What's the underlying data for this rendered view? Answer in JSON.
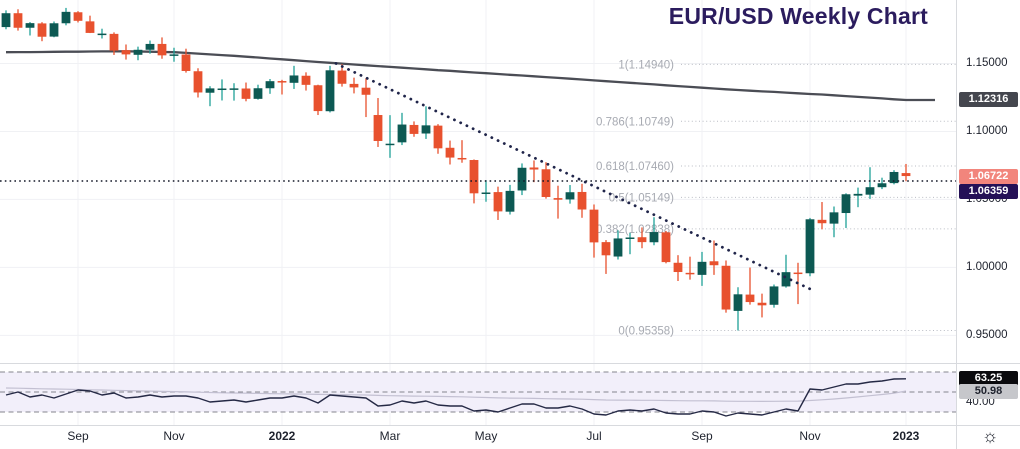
{
  "title": "EUR/USD Weekly Chart",
  "settings_icon": "☼",
  "theme": {
    "background": "#ffffff",
    "title_color": "#2b1c5e",
    "axis_text": "#1e222d",
    "grid_color": "#f0f1f4",
    "separator_color": "#d8dade",
    "up_body": "#0d5953",
    "up_wick": "#1fa098",
    "down_body": "#e8512e",
    "ma_color": "#4b4d55",
    "fib_color": "#a7aab2",
    "fib_line_color": "#b9bcc4",
    "trendline_color": "#20254a",
    "price_line_color": "#141829",
    "rsi_line": "#252945",
    "rsi_ma_line": "#c3c0d2",
    "rsi_band_fill": "#f2effa",
    "rsi_dash": "#84858d",
    "badge_ma_bg": "#44464e",
    "badge_ma_fg": "#ffffff",
    "badge_price_bg": "#f2857c",
    "badge_price_fg": "#ffffff",
    "badge_line_bg": "#241056",
    "badge_line_fg": "#ffffff",
    "badge_rsi_bg": "#0a0a0d",
    "badge_rsi_fg": "#ffffff",
    "badge_rsima_bg": "#c6c7cb",
    "badge_rsima_fg": "#1e222d"
  },
  "right_axis": {
    "price_labels": [
      {
        "text": "1.15000",
        "price": 1.15
      },
      {
        "text": "1.10000",
        "price": 1.1
      },
      {
        "text": "1.05000",
        "price": 1.05
      },
      {
        "text": "1.00000",
        "price": 1.0
      },
      {
        "text": "0.95000",
        "price": 0.95
      }
    ],
    "badges": [
      {
        "text": "1.12316",
        "price": 1.12316,
        "kind": "ma"
      },
      {
        "text": "1.06722",
        "price": 1.06722,
        "kind": "price"
      },
      {
        "text": "1.06359",
        "price": 1.06359,
        "kind": "line",
        "stack_below": "price"
      }
    ],
    "rsi_badges": [
      {
        "text": "63.25",
        "value": 63.25,
        "kind": "rsi"
      },
      {
        "text": "50.98",
        "value": 50.98,
        "kind": "rsima"
      }
    ],
    "rsi_axis_remnant": "40.00"
  },
  "time_axis": {
    "labels": [
      {
        "text": "Sep",
        "index": 6,
        "bold": false
      },
      {
        "text": "Nov",
        "index": 14,
        "bold": false
      },
      {
        "text": "2022",
        "index": 23,
        "bold": true
      },
      {
        "text": "Mar",
        "index": 32,
        "bold": false
      },
      {
        "text": "May",
        "index": 40,
        "bold": false
      },
      {
        "text": "Jul",
        "index": 49,
        "bold": false
      },
      {
        "text": "Sep",
        "index": 58,
        "bold": false
      },
      {
        "text": "Nov",
        "index": 67,
        "bold": false
      },
      {
        "text": "2023",
        "index": 75,
        "bold": true
      }
    ]
  },
  "chart_data": {
    "type": "candlestick",
    "title": "EUR/USD Weekly Chart",
    "pair": "EUR/USD",
    "timeframe": "Weekly",
    "y_axis_visible_range": [
      0.932,
      1.197
    ],
    "last_price": 1.06722,
    "ma_last_value": 1.12316,
    "horizontal_line_price": 1.06359,
    "candles": [
      [
        1.1768,
        1.1891,
        1.1752,
        1.187
      ],
      [
        1.187,
        1.1899,
        1.1742,
        1.1763
      ],
      [
        1.1763,
        1.1805,
        1.1706,
        1.1797
      ],
      [
        1.1795,
        1.1804,
        1.1664,
        1.1697
      ],
      [
        1.1698,
        1.1809,
        1.1693,
        1.1796
      ],
      [
        1.1796,
        1.1909,
        1.1781,
        1.188
      ],
      [
        1.1877,
        1.1885,
        1.1802,
        1.1814
      ],
      [
        1.181,
        1.1852,
        1.1724,
        1.1725
      ],
      [
        1.172,
        1.1756,
        1.1684,
        1.172
      ],
      [
        1.1718,
        1.1729,
        1.1563,
        1.1595
      ],
      [
        1.1598,
        1.164,
        1.1529,
        1.1567
      ],
      [
        1.1564,
        1.1624,
        1.1524,
        1.1601
      ],
      [
        1.1601,
        1.1669,
        1.1572,
        1.1644
      ],
      [
        1.1644,
        1.1692,
        1.1535,
        1.156
      ],
      [
        1.1558,
        1.1616,
        1.1513,
        1.1567
      ],
      [
        1.1566,
        1.1609,
        1.1433,
        1.1445
      ],
      [
        1.1443,
        1.1465,
        1.125,
        1.1287
      ],
      [
        1.1285,
        1.1333,
        1.1186,
        1.1317
      ],
      [
        1.131,
        1.1383,
        1.1228,
        1.1316
      ],
      [
        1.1312,
        1.1355,
        1.1227,
        1.1317
      ],
      [
        1.1316,
        1.136,
        1.1222,
        1.124
      ],
      [
        1.124,
        1.1344,
        1.1234,
        1.1318
      ],
      [
        1.1318,
        1.1386,
        1.1277,
        1.137
      ],
      [
        1.1371,
        1.138,
        1.1272,
        1.136
      ],
      [
        1.1358,
        1.1483,
        1.1313,
        1.1412
      ],
      [
        1.141,
        1.1435,
        1.1301,
        1.1343
      ],
      [
        1.134,
        1.1344,
        1.1121,
        1.115
      ],
      [
        1.1149,
        1.1483,
        1.114,
        1.145
      ],
      [
        1.1448,
        1.1495,
        1.133,
        1.1351
      ],
      [
        1.135,
        1.1396,
        1.128,
        1.1324
      ],
      [
        1.1322,
        1.1391,
        1.1106,
        1.127
      ],
      [
        1.1121,
        1.1246,
        1.0886,
        1.093
      ],
      [
        1.0905,
        1.112,
        1.0806,
        1.091
      ],
      [
        1.092,
        1.1137,
        1.09,
        1.1051
      ],
      [
        1.1048,
        1.1074,
        1.0961,
        1.0982
      ],
      [
        1.0985,
        1.1185,
        1.0945,
        1.1045
      ],
      [
        1.1043,
        1.1054,
        1.0836,
        1.0876
      ],
      [
        1.088,
        1.0933,
        1.0757,
        1.0808
      ],
      [
        1.0805,
        1.0936,
        1.077,
        1.0795
      ],
      [
        1.079,
        1.0794,
        1.0471,
        1.0545
      ],
      [
        1.054,
        1.0642,
        1.0483,
        1.0551
      ],
      [
        1.0554,
        1.0594,
        1.0349,
        1.0412
      ],
      [
        1.041,
        1.0607,
        1.0389,
        1.0563
      ],
      [
        1.0566,
        1.0765,
        1.0532,
        1.0733
      ],
      [
        1.0735,
        1.0787,
        1.0627,
        1.072
      ],
      [
        1.0722,
        1.0774,
        1.0506,
        1.0518
      ],
      [
        1.051,
        1.0601,
        1.0359,
        1.0498
      ],
      [
        1.05,
        1.0606,
        1.0469,
        1.0553
      ],
      [
        1.0555,
        1.0615,
        1.0365,
        1.0426
      ],
      [
        1.0425,
        1.0463,
        1.0072,
        1.0184
      ],
      [
        1.0186,
        1.0201,
        0.9952,
        1.0089
      ],
      [
        1.008,
        1.0273,
        1.0058,
        1.0213
      ],
      [
        1.0215,
        1.0254,
        1.0097,
        1.022
      ],
      [
        1.0222,
        1.0294,
        1.0141,
        1.0186
      ],
      [
        1.0185,
        1.0369,
        1.0163,
        1.026
      ],
      [
        1.0258,
        1.0268,
        1.003,
        1.0039
      ],
      [
        1.0034,
        1.009,
        0.99,
        0.9966
      ],
      [
        0.996,
        1.0079,
        0.991,
        0.9952
      ],
      [
        0.9945,
        1.0114,
        0.9864,
        1.0041
      ],
      [
        1.0045,
        1.0198,
        0.9945,
        1.0016
      ],
      [
        1.0012,
        1.0051,
        0.9667,
        0.969
      ],
      [
        0.968,
        0.9854,
        0.9536,
        0.9802
      ],
      [
        0.98,
        0.9999,
        0.9726,
        0.9745
      ],
      [
        0.974,
        0.9807,
        0.9632,
        0.9721
      ],
      [
        0.9725,
        0.9874,
        0.9704,
        0.986
      ],
      [
        0.986,
        1.0093,
        0.9851,
        0.9965
      ],
      [
        0.9962,
        1.0034,
        0.973,
        0.9959
      ],
      [
        0.9957,
        1.0364,
        0.9935,
        1.0354
      ],
      [
        1.035,
        1.0481,
        1.028,
        1.0325
      ],
      [
        1.0322,
        1.0448,
        1.0222,
        1.0405
      ],
      [
        1.04,
        1.0545,
        1.029,
        1.0538
      ],
      [
        1.0528,
        1.0587,
        1.0443,
        1.0541
      ],
      [
        1.0535,
        1.0737,
        1.0504,
        1.059
      ],
      [
        1.059,
        1.066,
        1.0576,
        1.0619
      ],
      [
        1.062,
        1.0715,
        1.0611,
        1.0702
      ],
      [
        1.0694,
        1.0761,
        1.0634,
        1.0672
      ]
    ],
    "ma_values": [
      1.1583,
      1.1584,
      1.1584,
      1.1585,
      1.1586,
      1.1587,
      1.1587,
      1.1588,
      1.1589,
      1.1589,
      1.159,
      1.1588,
      1.1587,
      1.1585,
      1.1583,
      1.1578,
      1.1573,
      1.1567,
      1.1562,
      1.1557,
      1.155,
      1.1544,
      1.1537,
      1.1531,
      1.1524,
      1.1518,
      1.1511,
      1.1505,
      1.1499,
      1.1493,
      1.1487,
      1.1481,
      1.1475,
      1.1469,
      1.1463,
      1.1457,
      1.1451,
      1.1446,
      1.144,
      1.1434,
      1.1429,
      1.1423,
      1.1417,
      1.1412,
      1.1406,
      1.14,
      1.1394,
      1.1388,
      1.1382,
      1.1376,
      1.137,
      1.1364,
      1.1358,
      1.1352,
      1.1346,
      1.134,
      1.1334,
      1.1328,
      1.1322,
      1.1316,
      1.131,
      1.1305,
      1.13,
      1.1295,
      1.1291,
      1.1286,
      1.1281,
      1.1276,
      1.1272,
      1.1266,
      1.126,
      1.1254,
      1.1249,
      1.1243,
      1.1237,
      1.12316
    ],
    "fib_levels": [
      {
        "ratio": "1",
        "price": 1.1494,
        "label": "1(1.14940)"
      },
      {
        "ratio": "0.786",
        "price": 1.10749,
        "label": "0.786(1.10749)"
      },
      {
        "ratio": "0.618",
        "price": 1.0746,
        "label": "0.618(1.07460)"
      },
      {
        "ratio": "0.5",
        "price": 1.05149,
        "label": "0.5(1.05149)"
      },
      {
        "ratio": "0.382",
        "price": 1.02838,
        "label": "0.382(1.02838)"
      },
      {
        "ratio": "0",
        "price": 0.95358,
        "label": "0(0.95358)"
      }
    ],
    "trendline": {
      "from_index": 27.5,
      "from_price": 1.15,
      "to_index": 67.2,
      "to_price": 0.9833
    },
    "rsi": {
      "bands": [
        70,
        50,
        30
      ],
      "last": 63.25,
      "ma_last": 50.98,
      "values": [
        47,
        50,
        45,
        47,
        44,
        48,
        52,
        51,
        47,
        49,
        44,
        45,
        47,
        45,
        46,
        46,
        44,
        40,
        41,
        42,
        40,
        42,
        44,
        44,
        46,
        44,
        39,
        47,
        46,
        45,
        44,
        36,
        37,
        41,
        39,
        41,
        37,
        36,
        36,
        31,
        32,
        30,
        34,
        38,
        38,
        34,
        34,
        36,
        33,
        28,
        27,
        31,
        32,
        31,
        33,
        29,
        28,
        28,
        31,
        30,
        26,
        29,
        28,
        27,
        30,
        33,
        31,
        53,
        52,
        55,
        58,
        58,
        60,
        61,
        63,
        63.25
      ],
      "ma_values": [
        54,
        53.8,
        53.5,
        53.2,
        53,
        52.8,
        52.5,
        52.2,
        52,
        51.7,
        51.4,
        51.1,
        50.9,
        50.6,
        50.4,
        50.1,
        49.8,
        49.5,
        49.2,
        49,
        48.8,
        48.6,
        48.4,
        48.2,
        48,
        47.9,
        47.6,
        47.5,
        47.4,
        47.2,
        47,
        46.6,
        46.3,
        46.1,
        45.9,
        45.8,
        45.6,
        45.4,
        45.2,
        44.8,
        44.5,
        44.1,
        43.9,
        43.8,
        43.6,
        43.3,
        43.1,
        43,
        42.8,
        42.4,
        42,
        41.9,
        41.8,
        41.7,
        41.7,
        41.5,
        41.3,
        41.2,
        41.2,
        41.1,
        40.8,
        40.7,
        40.7,
        40.6,
        40.7,
        40.8,
        40.9,
        41.5,
        42.2,
        43,
        44,
        45.1,
        46.3,
        47.5,
        48.8,
        50.98
      ]
    }
  }
}
